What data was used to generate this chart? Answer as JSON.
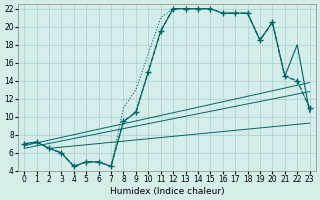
{
  "xlabel": "Humidex (Indice chaleur)",
  "bg_color": "#d4ecea",
  "grid_color": "#aacfcf",
  "line_color": "#006666",
  "xlim": [
    -0.5,
    23.5
  ],
  "ylim": [
    4,
    22.5
  ],
  "xticks": [
    0,
    1,
    2,
    3,
    4,
    5,
    6,
    7,
    8,
    9,
    10,
    11,
    12,
    13,
    14,
    15,
    16,
    17,
    18,
    19,
    20,
    21,
    22,
    23
  ],
  "yticks": [
    4,
    6,
    8,
    10,
    12,
    14,
    16,
    18,
    20,
    22
  ],
  "curve_dashed_x": [
    0,
    1,
    2,
    3,
    4,
    5,
    6,
    7,
    8,
    9,
    10,
    11,
    12,
    13,
    14,
    15,
    16,
    17,
    18,
    19,
    20,
    21,
    22,
    23
  ],
  "curve_dashed_y": [
    7.0,
    7.2,
    6.5,
    6.0,
    4.5,
    5.0,
    5.0,
    4.5,
    9.5,
    10.5,
    15.0,
    19.5,
    22.0,
    22.0,
    22.0,
    22.0,
    21.5,
    21.5,
    21.5,
    18.5,
    20.5,
    14.5,
    14.0,
    11.0
  ],
  "curve_solid_x": [
    0,
    1,
    2,
    3,
    4,
    5,
    6,
    7,
    8,
    9,
    10,
    11,
    12,
    13,
    14,
    15,
    16,
    17,
    18,
    19,
    20,
    21,
    22,
    23
  ],
  "curve_solid_y": [
    7.0,
    7.2,
    6.5,
    6.0,
    4.5,
    5.0,
    5.0,
    4.5,
    9.5,
    10.5,
    15.0,
    19.5,
    22.0,
    22.0,
    22.0,
    22.0,
    21.5,
    21.5,
    21.5,
    18.5,
    20.5,
    14.5,
    18.0,
    10.5
  ],
  "curve_dotted_x": [
    0,
    1,
    2,
    3,
    4,
    5,
    6,
    7,
    8,
    9,
    10,
    11,
    12,
    13,
    14,
    15,
    16,
    17,
    18,
    19,
    20,
    21,
    22,
    23
  ],
  "curve_dotted_y": [
    7.0,
    7.2,
    6.5,
    6.0,
    4.5,
    5.0,
    5.0,
    4.5,
    11.0,
    13.0,
    17.0,
    21.0,
    22.0,
    22.0,
    22.0,
    22.0,
    21.5,
    21.5,
    21.5,
    18.5,
    20.5,
    14.5,
    14.0,
    11.0
  ],
  "trend1_x": [
    0,
    23
  ],
  "trend1_y": [
    6.8,
    13.8
  ],
  "trend2_x": [
    0,
    23
  ],
  "trend2_y": [
    6.5,
    12.8
  ],
  "trend3_x": [
    2,
    23
  ],
  "trend3_y": [
    6.5,
    9.3
  ]
}
